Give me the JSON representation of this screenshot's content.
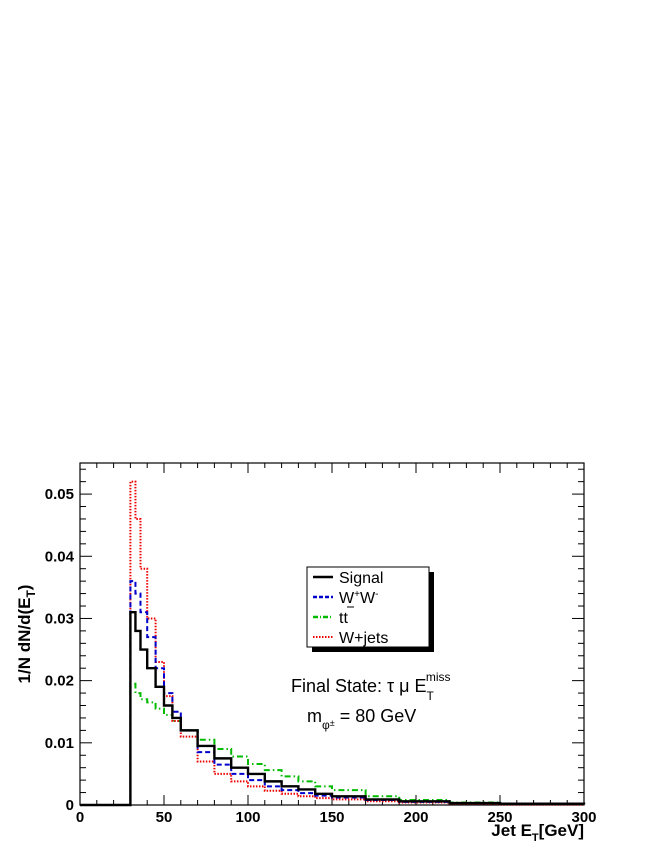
{
  "chart_data": {
    "type": "line",
    "xlabel": "Jet E",
    "xlabel_sub": "T",
    "xlabel_unit": "[GeV]",
    "ylabel_main": "1/N dN/d(E",
    "ylabel_sub": "T",
    "ylabel_close": ")",
    "xlim": [
      0,
      300
    ],
    "ylim": [
      0,
      0.055
    ],
    "x_ticks": [
      0,
      50,
      100,
      150,
      200,
      250,
      300
    ],
    "x_tick_labels": [
      "0",
      "50",
      "100",
      "150",
      "200",
      "250",
      "300"
    ],
    "y_ticks": [
      0,
      0.01,
      0.02,
      0.03,
      0.04,
      0.05
    ],
    "y_tick_labels": [
      "0",
      "0.01",
      "0.02",
      "0.03",
      "0.04",
      "0.05"
    ],
    "grid": false,
    "legend_position": "center-right",
    "series": [
      {
        "name": "Signal",
        "legend_label": "Signal",
        "color": "#000000",
        "style": "solid",
        "points": [
          [
            30,
            0
          ],
          [
            30,
            0.031
          ],
          [
            33,
            0.028
          ],
          [
            36,
            0.025
          ],
          [
            40,
            0.022
          ],
          [
            45,
            0.019
          ],
          [
            50,
            0.016
          ],
          [
            55,
            0.014
          ],
          [
            60,
            0.012
          ],
          [
            70,
            0.0095
          ],
          [
            80,
            0.0075
          ],
          [
            90,
            0.006
          ],
          [
            100,
            0.005
          ],
          [
            110,
            0.0038
          ],
          [
            120,
            0.003
          ],
          [
            130,
            0.0025
          ],
          [
            140,
            0.0018
          ],
          [
            150,
            0.0014
          ],
          [
            170,
            0.0009
          ],
          [
            190,
            0.0006
          ],
          [
            220,
            0.0003
          ],
          [
            250,
            0.0002
          ],
          [
            300,
            0.0001
          ]
        ]
      },
      {
        "name": "W+W-",
        "legend_label": "W",
        "legend_sup1": "+",
        "legend_mid": "W",
        "legend_sup2": "-",
        "color": "#0000cc",
        "style": "dashed",
        "points": [
          [
            30,
            0
          ],
          [
            30,
            0.036
          ],
          [
            33,
            0.034
          ],
          [
            36,
            0.031
          ],
          [
            40,
            0.027
          ],
          [
            45,
            0.022
          ],
          [
            50,
            0.018
          ],
          [
            55,
            0.015
          ],
          [
            60,
            0.012
          ],
          [
            70,
            0.0085
          ],
          [
            80,
            0.0065
          ],
          [
            90,
            0.005
          ],
          [
            100,
            0.004
          ],
          [
            110,
            0.003
          ],
          [
            120,
            0.0024
          ],
          [
            130,
            0.0019
          ],
          [
            140,
            0.0015
          ],
          [
            150,
            0.0012
          ],
          [
            170,
            0.0008
          ],
          [
            190,
            0.0005
          ],
          [
            220,
            0.0003
          ],
          [
            250,
            0.0002
          ],
          [
            300,
            0.0001
          ]
        ]
      },
      {
        "name": "ttbar",
        "legend_label": "tt",
        "color": "#00bb00",
        "style": "dash-dot",
        "points": [
          [
            30,
            0
          ],
          [
            30,
            0.0195
          ],
          [
            33,
            0.018
          ],
          [
            36,
            0.017
          ],
          [
            40,
            0.0165
          ],
          [
            45,
            0.0155
          ],
          [
            50,
            0.0145
          ],
          [
            55,
            0.0135
          ],
          [
            60,
            0.012
          ],
          [
            70,
            0.0105
          ],
          [
            80,
            0.009
          ],
          [
            90,
            0.0078
          ],
          [
            100,
            0.0066
          ],
          [
            110,
            0.0056
          ],
          [
            120,
            0.0046
          ],
          [
            130,
            0.0038
          ],
          [
            140,
            0.003
          ],
          [
            150,
            0.0024
          ],
          [
            170,
            0.0014
          ],
          [
            190,
            0.0008
          ],
          [
            220,
            0.0004
          ],
          [
            250,
            0.0002
          ],
          [
            300,
            0.0001
          ]
        ]
      },
      {
        "name": "W+jets",
        "legend_label": "W+jets",
        "color": "#ee0000",
        "style": "dotted",
        "points": [
          [
            30,
            0
          ],
          [
            30,
            0.052
          ],
          [
            33,
            0.046
          ],
          [
            36,
            0.038
          ],
          [
            40,
            0.03
          ],
          [
            45,
            0.023
          ],
          [
            50,
            0.0175
          ],
          [
            55,
            0.0135
          ],
          [
            60,
            0.011
          ],
          [
            70,
            0.007
          ],
          [
            80,
            0.005
          ],
          [
            90,
            0.0038
          ],
          [
            100,
            0.003
          ],
          [
            110,
            0.0023
          ],
          [
            120,
            0.0018
          ],
          [
            130,
            0.0014
          ],
          [
            140,
            0.0011
          ],
          [
            150,
            0.0009
          ],
          [
            170,
            0.0006
          ],
          [
            190,
            0.0004
          ],
          [
            220,
            0.0002
          ],
          [
            250,
            0.0001
          ],
          [
            300,
            0.0001
          ]
        ]
      }
    ],
    "annotation_final_state": "Final State: τ μ E",
    "annotation_final_state_sub": "T",
    "annotation_final_state_sup": "miss",
    "annotation_mass_m": "m",
    "annotation_mass_sub": "φ",
    "annotation_mass_subsup": "±",
    "annotation_mass_value": " = 80 GeV"
  }
}
